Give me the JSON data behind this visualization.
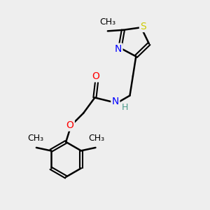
{
  "bg_color": "#eeeeee",
  "atom_colors": {
    "C": "#000000",
    "H": "#4a9a8a",
    "N": "#0000ff",
    "O": "#ff0000",
    "S": "#cccc00"
  },
  "bond_width": 1.8,
  "font_size_atoms": 10,
  "font_size_methyl": 9,
  "figsize": [
    3.0,
    3.0
  ],
  "dpi": 100,
  "xlim": [
    0,
    10
  ],
  "ylim": [
    0,
    10
  ]
}
